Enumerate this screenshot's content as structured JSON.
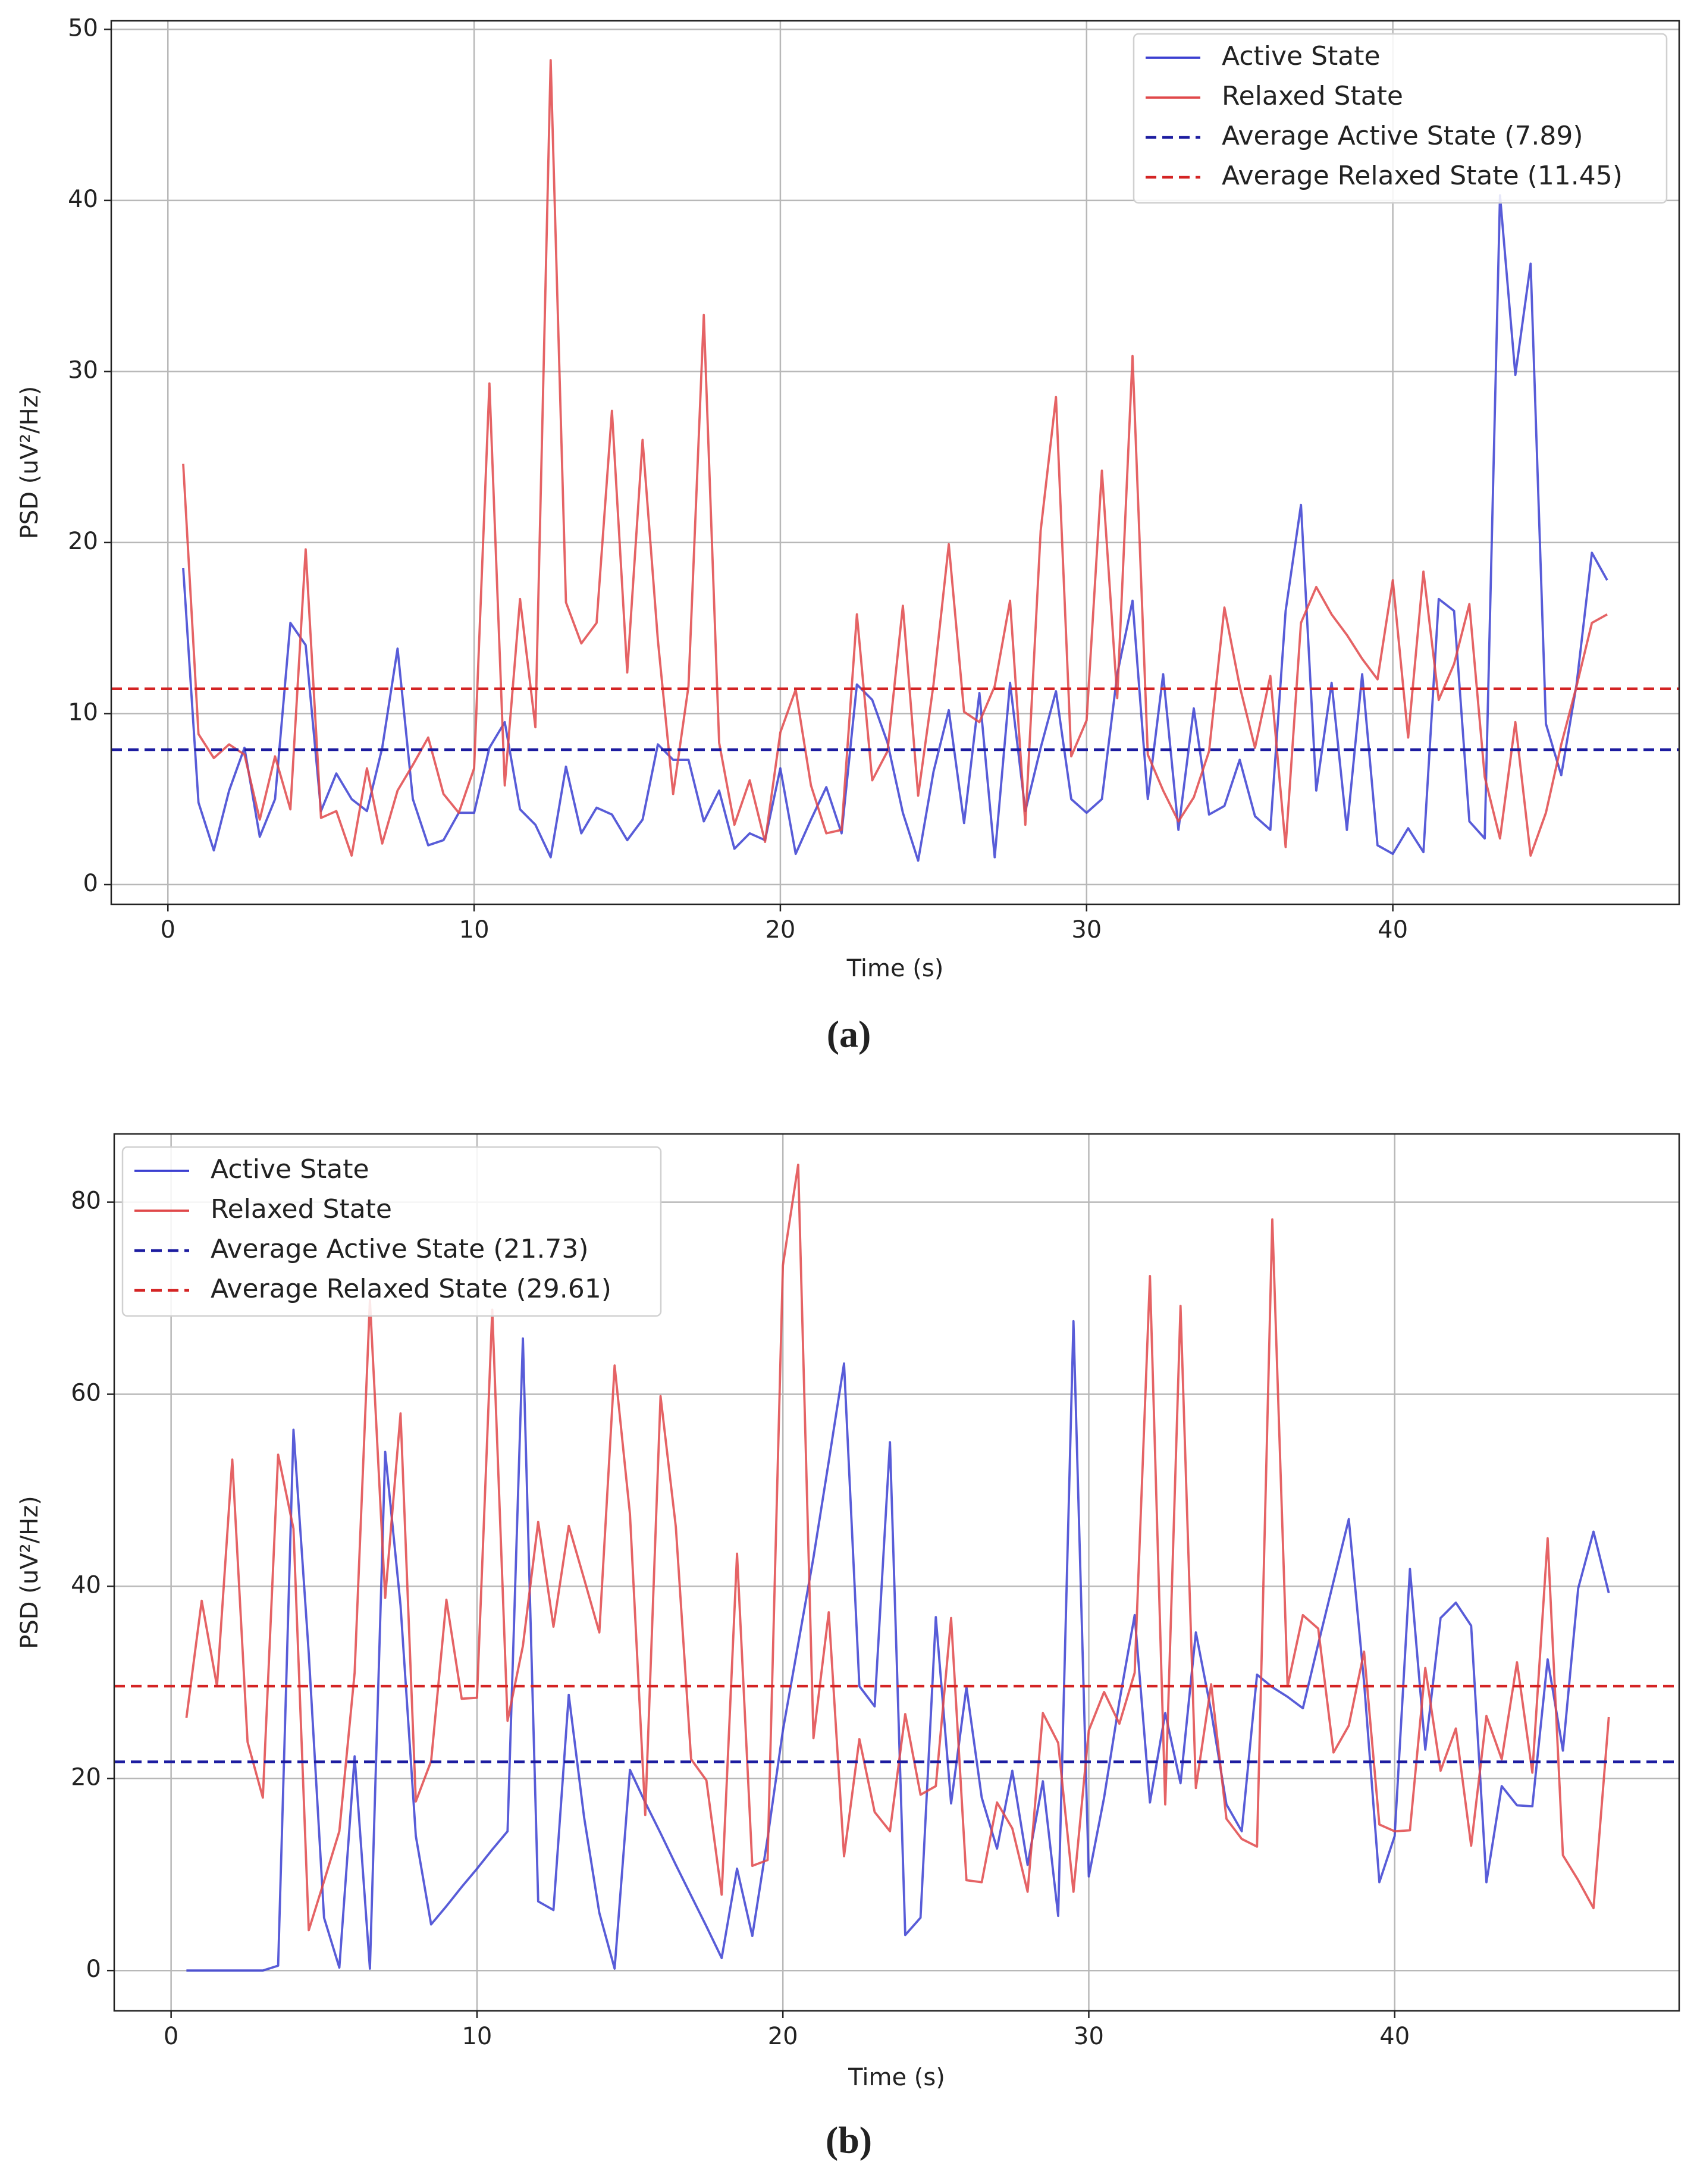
{
  "chart_data": [
    {
      "type": "line",
      "caption": "(a)",
      "xlabel": "Time (s)",
      "ylabel": "PSD (uV²/Hz)",
      "grid": true,
      "legend": "upper right",
      "xlim": [
        -1.85,
        49.35
      ],
      "ylim": [
        -1.15,
        50.5
      ],
      "xticks": [
        0,
        10,
        20,
        30,
        40
      ],
      "yticks": [
        0,
        10,
        20,
        30,
        40,
        50
      ],
      "x": [
        0.5,
        1,
        1.5,
        2,
        2.5,
        3,
        3.5,
        4,
        4.5,
        5,
        5.5,
        6,
        6.5,
        7,
        7.5,
        8,
        8.5,
        9,
        9.5,
        10,
        10.5,
        11,
        11.5,
        12,
        12.5,
        13,
        13.5,
        14,
        14.5,
        15,
        15.5,
        16,
        16.5,
        17,
        17.5,
        18,
        18.5,
        19,
        19.5,
        20,
        20.5,
        21,
        21.5,
        22,
        22.5,
        23,
        23.5,
        24,
        24.5,
        25,
        25.5,
        26,
        26.5,
        27,
        27.5,
        28,
        28.5,
        29,
        29.5,
        30,
        30.5,
        31,
        31.5,
        32,
        32.5,
        33,
        33.5,
        34,
        34.5,
        35,
        35.5,
        36,
        36.5,
        37,
        37.5,
        38,
        38.5,
        39,
        39.5,
        40,
        40.5,
        41,
        41.5,
        42,
        42.5,
        43,
        43.5,
        44,
        44.5,
        45,
        45.5,
        46,
        46.5,
        47
      ],
      "series": [
        {
          "name": "Active State",
          "color": "#3b3fd1",
          "values": [
            18.5,
            4.8,
            2,
            5.5,
            8,
            2.8,
            5,
            15.3,
            14,
            4.3,
            6.5,
            5,
            4.3,
            8,
            13.8,
            5,
            2.3,
            2.6,
            4.2,
            4.2,
            8,
            9.5,
            4.4,
            3.5,
            1.6,
            6.9,
            3,
            4.5,
            4.1,
            2.6,
            3.8,
            8.2,
            7.3,
            7.3,
            3.7,
            5.5,
            2.1,
            3,
            2.6,
            6.8,
            1.8,
            3.8,
            5.7,
            3,
            11.7,
            10.8,
            8.3,
            4.2,
            1.4,
            6.6,
            10.2,
            3.6,
            11.2,
            1.6,
            11.8,
            4.3,
            8,
            11.3,
            5,
            4.2,
            5,
            12.3,
            16.6,
            5,
            12.3,
            3.2,
            10.3,
            4.1,
            4.6,
            7.3,
            4,
            3.2,
            16,
            22.2,
            5.5,
            11.8,
            3.2,
            12.3,
            2.3,
            1.8,
            3.3,
            1.9,
            16.7,
            16,
            3.7,
            2.7,
            40.3,
            29.8,
            36.3,
            9.4,
            6.4,
            11.7,
            19.4,
            17.8
          ]
        },
        {
          "name": "Relaxed State",
          "color": "#e0484a",
          "values": [
            24.6,
            8.8,
            7.4,
            8.2,
            7.6,
            3.8,
            7.5,
            4.4,
            19.6,
            3.9,
            4.3,
            1.7,
            6.8,
            2.4,
            5.5,
            7,
            8.6,
            5.3,
            4.2,
            6.8,
            29.3,
            5.8,
            16.7,
            9.2,
            48.2,
            16.5,
            14.1,
            15.3,
            27.7,
            12.4,
            26,
            14.3,
            5.3,
            11.6,
            33.3,
            8.3,
            3.5,
            6.1,
            2.5,
            8.9,
            11.4,
            5.8,
            3,
            3.2,
            15.8,
            6.1,
            7.8,
            16.3,
            5.2,
            11.7,
            19.9,
            10.1,
            9.5,
            11.6,
            16.6,
            3.5,
            20.7,
            28.5,
            7.5,
            9.6,
            24.2,
            10.9,
            30.9,
            7.6,
            5.5,
            3.7,
            5.1,
            7.8,
            16.2,
            11.6,
            8,
            12.2,
            2.2,
            15.3,
            17.4,
            15.8,
            14.6,
            13.2,
            12,
            17.8,
            8.6,
            18.3,
            10.8,
            12.9,
            16.4,
            6.3,
            2.7,
            9.5,
            1.7,
            4.2,
            8.2,
            11.6,
            15.3,
            15.8
          ]
        },
        {
          "name": "Average Active State (7.89)",
          "color": "#1c1ca0",
          "dashed": true,
          "value": 7.89
        },
        {
          "name": "Average Relaxed State (11.45)",
          "color": "#d42424",
          "dashed": true,
          "value": 11.45
        }
      ]
    },
    {
      "type": "line",
      "caption": "(b)",
      "xlabel": "Time (s)",
      "ylabel": "PSD (uV²/Hz)",
      "grid": true,
      "legend": "upper left",
      "xlim": [
        -1.86,
        49.3
      ],
      "ylim": [
        -4.2,
        87.1
      ],
      "xticks": [
        0,
        10,
        20,
        30,
        40
      ],
      "yticks": [
        0,
        20,
        40,
        60,
        80
      ],
      "x": [
        0.5,
        1,
        1.5,
        2,
        2.5,
        3,
        3.5,
        4,
        4.5,
        5,
        5.5,
        6,
        6.5,
        7,
        7.5,
        8,
        8.5,
        9,
        9.5,
        10,
        10.5,
        11,
        11.5,
        12,
        12.5,
        13,
        13.5,
        14,
        14.5,
        15,
        15.5,
        16,
        16.5,
        17,
        17.5,
        18,
        18.5,
        19,
        19.5,
        20,
        20.5,
        21,
        21.5,
        22,
        22.5,
        23,
        23.5,
        24,
        24.5,
        25,
        25.5,
        26,
        26.5,
        27,
        27.5,
        28,
        28.5,
        29,
        29.5,
        30,
        30.5,
        31,
        31.5,
        32,
        32.5,
        33,
        33.5,
        34,
        34.5,
        35,
        35.5,
        36,
        36.5,
        37,
        37.5,
        38,
        38.5,
        39,
        39.5,
        40,
        40.5,
        41,
        41.5,
        42,
        42.5,
        43,
        43.5,
        44,
        44.5,
        45,
        45.5,
        46,
        46.5,
        47
      ],
      "series": [
        {
          "name": "Active State",
          "color": "#3b3fd1",
          "values": [
            0,
            0,
            0,
            0,
            0,
            0,
            0.5,
            56.3,
            33,
            5.5,
            0.3,
            22.3,
            0.2,
            54,
            38,
            14,
            4.8,
            6.7,
            8.7,
            10.6,
            12.6,
            14.5,
            65.8,
            7.2,
            6.3,
            28.7,
            16,
            6,
            0.2,
            20.9,
            17.5,
            14.3,
            11,
            7.8,
            4.6,
            1.3,
            10.6,
            3.6,
            13.8,
            25,
            34,
            43,
            53,
            63.2,
            29.6,
            27.5,
            55,
            3.7,
            5.5,
            36.8,
            17.4,
            29.5,
            18,
            12.7,
            20.8,
            11,
            19.7,
            5.7,
            67.6,
            9.8,
            18,
            28,
            37,
            17.5,
            26.8,
            19.5,
            35.2,
            27,
            17.3,
            14.5,
            30.8,
            29.5,
            28.5,
            27.3,
            34,
            40.5,
            47,
            30,
            9.2,
            14,
            41.8,
            23,
            36.7,
            38.3,
            35.9,
            9.2,
            19.2,
            17.2,
            17.1,
            32.4,
            22.9,
            39.8,
            45.7,
            39.3
          ]
        },
        {
          "name": "Relaxed State",
          "color": "#e0484a",
          "values": [
            26.3,
            38.5,
            29.6,
            53.2,
            23.8,
            18,
            53.7,
            46,
            4.2,
            9.3,
            14.5,
            31,
            69.8,
            38.8,
            58,
            17.6,
            21.8,
            38.6,
            28.3,
            28.4,
            68.8,
            26,
            33.8,
            46.7,
            35.8,
            46.3,
            40.8,
            35.2,
            63,
            47.5,
            16.2,
            59.8,
            46.2,
            22,
            19.8,
            7.9,
            43.4,
            10.9,
            11.5,
            73.4,
            83.9,
            24.2,
            37.3,
            11.9,
            24.1,
            16.5,
            14.5,
            26.7,
            18.3,
            19.2,
            36.7,
            9.4,
            9.2,
            17.5,
            14.8,
            8.2,
            26.8,
            23.7,
            8.2,
            25,
            29,
            25.7,
            31,
            72.3,
            17.3,
            69.2,
            19,
            29.8,
            15.8,
            13.7,
            12.9,
            78.2,
            29.6,
            37,
            35.6,
            22.7,
            25.5,
            33.2,
            15.2,
            14.5,
            14.6,
            31.5,
            20.8,
            25.2,
            13,
            26.5,
            22,
            32.1,
            20.6,
            45,
            12,
            9.4,
            6.5,
            26.4
          ]
        },
        {
          "name": "Average Active State (21.73)",
          "color": "#1c1ca0",
          "dashed": true,
          "value": 21.73
        },
        {
          "name": "Average Relaxed State (29.61)",
          "color": "#d42424",
          "dashed": true,
          "value": 29.61
        }
      ]
    }
  ]
}
